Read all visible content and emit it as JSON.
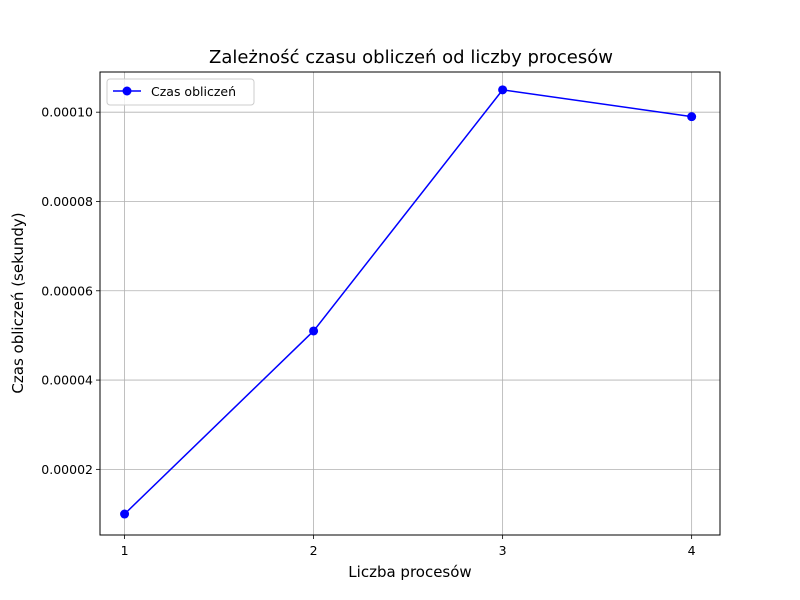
{
  "chart_data": {
    "type": "line",
    "title": "Zależność czasu obliczeń od liczby procesów",
    "xlabel": "Liczba procesów",
    "ylabel": "Czas obliczeń (sekundy)",
    "x": [
      1,
      2,
      3,
      4
    ],
    "x_tick_labels": [
      "1",
      "2",
      "3",
      "4"
    ],
    "y_ticks": [
      2e-05,
      4e-05,
      6e-05,
      8e-05,
      0.0001
    ],
    "y_tick_labels": [
      "0.00002",
      "0.00004",
      "0.00006",
      "0.00008",
      "0.00010"
    ],
    "xlim": [
      0.87,
      4.15
    ],
    "ylim": [
      5.3e-06,
      0.000109
    ],
    "grid": true,
    "legend_position": "top-left",
    "series": [
      {
        "name": "Czas obliczeń",
        "color": "#0000ff",
        "marker": "circle",
        "values": [
          1e-05,
          5.1e-05,
          0.000105,
          9.9e-05
        ]
      }
    ]
  }
}
